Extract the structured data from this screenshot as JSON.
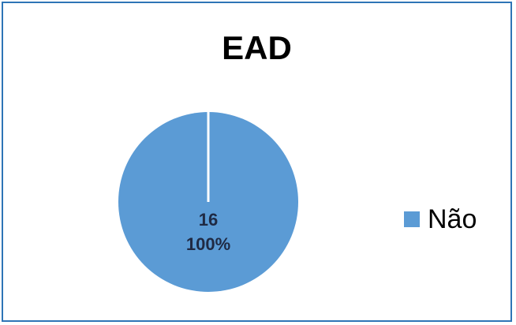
{
  "chart_data": {
    "type": "pie",
    "title": "EAD",
    "slices": [
      {
        "label": "Não",
        "value": 16,
        "percent_label": "100%",
        "color": "#5b9bd5"
      }
    ],
    "legend": {
      "placement": "right",
      "items": [
        "Não"
      ]
    }
  },
  "colors": {
    "frame_border": "#2e75b6",
    "slice_separator": "#ffffff",
    "data_label": "#1f2a44"
  }
}
